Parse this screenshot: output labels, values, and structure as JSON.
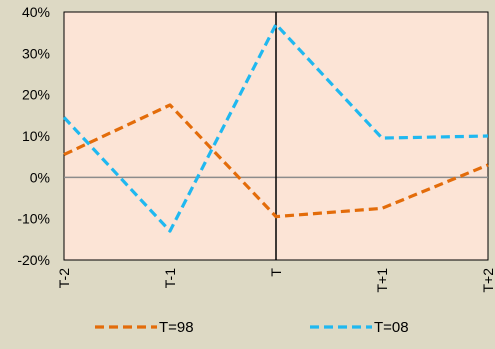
{
  "chart_data": {
    "type": "line",
    "title": "",
    "xlabel": "",
    "ylabel": "",
    "categories": [
      "T-2",
      "T-1",
      "T",
      "T+1",
      "T+2"
    ],
    "ylim": [
      -20,
      40
    ],
    "yticks": [
      -20,
      -10,
      0,
      10,
      20,
      30,
      40
    ],
    "ytick_format": "percent",
    "grid": false,
    "legend": "bottom",
    "plot_background": "#fce4d6",
    "page_background": "#ddd9c4",
    "series": [
      {
        "name": "T=98",
        "color": "#e36c0a",
        "dash": "dashed",
        "values": [
          5.5,
          17.5,
          -9.5,
          -7.5,
          3
        ]
      },
      {
        "name": "T=08",
        "color": "#1fb8f0",
        "dash": "dashed",
        "values": [
          14.5,
          -13,
          37,
          9.5,
          10
        ]
      }
    ]
  }
}
